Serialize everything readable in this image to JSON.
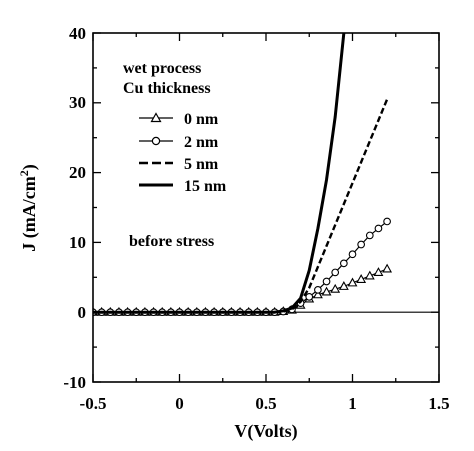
{
  "chart_data": {
    "type": "line",
    "xlabel": "V(Volts)",
    "ylabel_main": "J (mA/cm",
    "ylabel_sup": "2",
    "ylabel_close": ")",
    "xlim": [
      -0.5,
      1.5
    ],
    "ylim": [
      -10,
      40
    ],
    "x_ticks": [
      -0.5,
      0,
      0.5,
      1,
      1.5
    ],
    "x_tick_labels": [
      "-0.5",
      "0",
      "0.5",
      "1",
      "1.5"
    ],
    "y_ticks": [
      -10,
      0,
      10,
      20,
      30,
      40
    ],
    "y_tick_labels": [
      "-10",
      "0",
      "10",
      "20",
      "30",
      "40"
    ],
    "grid": false,
    "zero_line": true,
    "annotations": [
      "wet process",
      "Cu thickness",
      "before stress"
    ],
    "legend_placement": "upper-left",
    "series": [
      {
        "name": "0 nm",
        "marker": "triangle",
        "linestyle": "solid",
        "color": "#000000",
        "x": [
          -0.5,
          -0.45,
          -0.4,
          -0.35,
          -0.3,
          -0.25,
          -0.2,
          -0.15,
          -0.1,
          -0.05,
          0,
          0.05,
          0.1,
          0.15,
          0.2,
          0.25,
          0.3,
          0.35,
          0.4,
          0.45,
          0.5,
          0.55,
          0.6,
          0.65,
          0.7,
          0.75,
          0.8,
          0.85,
          0.9,
          0.95,
          1.0,
          1.05,
          1.1,
          1.15,
          1.2
        ],
        "y": [
          0,
          0,
          0,
          0,
          0,
          0,
          0,
          0,
          0,
          0,
          0,
          0,
          0,
          0,
          0,
          0,
          0,
          0,
          0,
          0,
          0,
          0,
          0.1,
          0.3,
          1.0,
          1.9,
          2.5,
          2.9,
          3.3,
          3.7,
          4.2,
          4.7,
          5.2,
          5.7,
          6.2
        ]
      },
      {
        "name": "2 nm",
        "marker": "circle",
        "linestyle": "solid",
        "color": "#000000",
        "x": [
          -0.5,
          -0.45,
          -0.4,
          -0.35,
          -0.3,
          -0.25,
          -0.2,
          -0.15,
          -0.1,
          -0.05,
          0,
          0.05,
          0.1,
          0.15,
          0.2,
          0.25,
          0.3,
          0.35,
          0.4,
          0.45,
          0.5,
          0.55,
          0.6,
          0.65,
          0.7,
          0.75,
          0.8,
          0.85,
          0.9,
          0.95,
          1.0,
          1.05,
          1.1,
          1.15,
          1.2
        ],
        "y": [
          0,
          0,
          0,
          0,
          0,
          0,
          0,
          0,
          0,
          0,
          0,
          0,
          0,
          0,
          0,
          0,
          0,
          0,
          0,
          0,
          0,
          0,
          0.1,
          0.4,
          1.3,
          2.2,
          3.2,
          4.4,
          5.7,
          7.0,
          8.3,
          9.7,
          11.0,
          12.0,
          13.0
        ]
      },
      {
        "name": "5 nm",
        "marker": "none",
        "linestyle": "dashed",
        "color": "#000000",
        "x": [
          0.55,
          0.6,
          0.65,
          0.7,
          0.75,
          0.8,
          0.85,
          0.9,
          0.95,
          1.0,
          1.05,
          1.1,
          1.15,
          1.2
        ],
        "y": [
          0,
          0.1,
          0.4,
          1.5,
          3.5,
          6.5,
          9.5,
          12.5,
          15.5,
          18.5,
          21.5,
          24.5,
          27.5,
          30.5
        ]
      },
      {
        "name": "15 nm",
        "marker": "none",
        "linestyle": "solid-thick",
        "color": "#000000",
        "x": [
          -0.5,
          -0.4,
          -0.3,
          -0.2,
          -0.1,
          0,
          0.1,
          0.2,
          0.3,
          0.4,
          0.5,
          0.55,
          0.6,
          0.65,
          0.7,
          0.75,
          0.8,
          0.85,
          0.9,
          0.95
        ],
        "y": [
          0,
          0,
          0,
          0,
          0,
          0,
          0,
          0,
          0,
          0,
          0,
          0,
          0.2,
          0.6,
          2.0,
          6.0,
          12.0,
          19.0,
          28.0,
          40.0
        ]
      }
    ]
  }
}
